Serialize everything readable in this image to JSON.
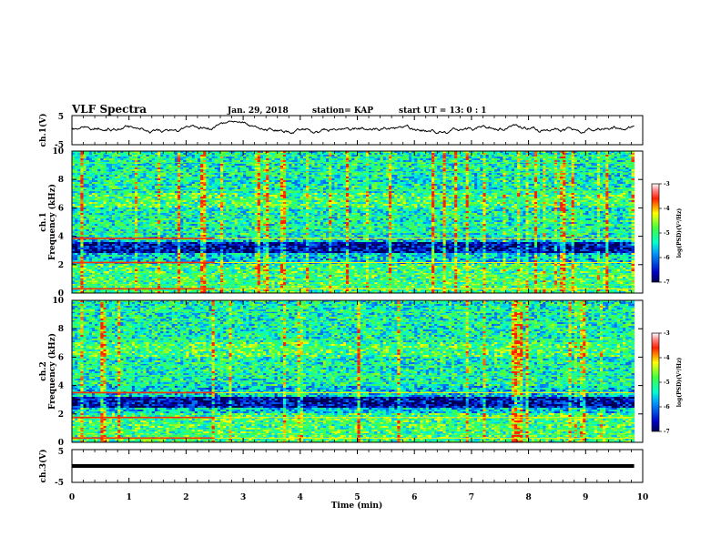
{
  "header": {
    "title": "VLF Spectra",
    "date": "Jan. 29, 2018",
    "station": "station= KAP",
    "start_time": "start UT =  13: 0  : 1"
  },
  "axes": {
    "xlabel": "Time (min)",
    "ch1_wave_ylabel": "ch.1(V)",
    "ch1_spec_ylabel_a": "ch.1",
    "ch1_spec_ylabel_b": "Frequency (kHz)",
    "ch2_spec_ylabel_a": "ch.2",
    "ch2_spec_ylabel_b": "Frequency (kHz)",
    "ch3_wave_ylabel": "ch.3(V)",
    "colorbar_label": "log(PSD)(V²/Hz)"
  },
  "chart_data": [
    {
      "type": "line",
      "name": "ch1-waveform",
      "ylabel": "ch.1(V)",
      "xlim": [
        0,
        10
      ],
      "ylim": [
        -5,
        5
      ],
      "yticks": [
        "5",
        "-5"
      ],
      "x_end": 9.85,
      "mean": 0.5,
      "amplitude": 1.3
    },
    {
      "type": "heatmap",
      "name": "ch1-spectrogram",
      "ylabel": "Frequency (kHz)",
      "xlim": [
        0,
        10
      ],
      "ylim": [
        0,
        10
      ],
      "yticks": [
        "0",
        "2",
        "4",
        "6",
        "8",
        "10"
      ],
      "x_end": 9.85,
      "zlim": [
        -7,
        -3
      ],
      "zticks": [
        "-3",
        "-4",
        "-5",
        "-6",
        "-7"
      ],
      "strong_lines_khz": [
        3.85,
        2.15,
        0.3
      ],
      "strong_lines_end_min": 2.5,
      "dark_band_khz": [
        2.8,
        3.6
      ]
    },
    {
      "type": "heatmap",
      "name": "ch2-spectrogram",
      "ylabel": "Frequency (kHz)",
      "xlim": [
        0,
        10
      ],
      "ylim": [
        0,
        10
      ],
      "yticks": [
        "0",
        "2",
        "4",
        "6",
        "8",
        "10"
      ],
      "x_end": 9.85,
      "zlim": [
        -7,
        -3
      ],
      "zticks": [
        "-3",
        "-4",
        "-5",
        "-6",
        "-7"
      ],
      "strong_lines_khz": [
        3.5,
        1.75,
        0.3
      ],
      "strong_lines_end_min": 2.5,
      "dark_band_khz": [
        2.5,
        3.2
      ]
    },
    {
      "type": "line",
      "name": "ch3-waveform",
      "ylabel": "ch.3(V)",
      "xlim": [
        0,
        10
      ],
      "ylim": [
        -5,
        5
      ],
      "yticks": [
        "5",
        "-5"
      ],
      "x_end": 9.85,
      "constant_value": 0
    }
  ],
  "xticks": [
    "0",
    "1",
    "2",
    "3",
    "4",
    "5",
    "6",
    "7",
    "8",
    "9",
    "10"
  ]
}
